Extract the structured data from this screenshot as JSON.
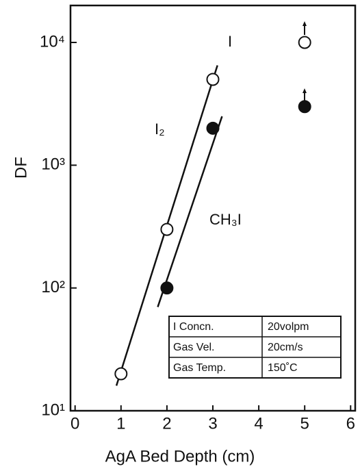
{
  "chart_data": {
    "type": "scatter",
    "xlabel": "AgA Bed Depth (cm)",
    "ylabel": "DF",
    "xlim": [
      -0.1,
      6.1
    ],
    "xticks": [
      0,
      1,
      2,
      3,
      4,
      5,
      6
    ],
    "ylim": [
      10,
      20000
    ],
    "ylog": true,
    "yticks": [
      {
        "value": 10,
        "label": "10¹"
      },
      {
        "value": 100,
        "label": "10²"
      },
      {
        "value": 1000,
        "label": "10³"
      },
      {
        "value": 10000,
        "label": "10⁴"
      }
    ],
    "series": [
      {
        "name": "I₂",
        "color": "#111111",
        "marker": "open",
        "x": [
          1,
          2,
          3,
          5
        ],
        "values": [
          20,
          300,
          5000,
          10000
        ]
      },
      {
        "name": "CH₃I",
        "color": "#111111",
        "marker": "filled",
        "x": [
          2,
          3,
          5
        ],
        "values": [
          100,
          2000,
          3000
        ]
      }
    ],
    "fit_lines": [
      {
        "x": [
          0.9,
          3.1
        ],
        "values": [
          16,
          6500
        ]
      },
      {
        "x": [
          1.8,
          3.2
        ],
        "values": [
          70,
          2500
        ]
      }
    ],
    "annotations": [
      "I",
      "I₂",
      "CH₃I"
    ],
    "table": [
      [
        "I Concn.",
        "20volpm"
      ],
      [
        "Gas Vel.",
        "20cm/s"
      ],
      [
        "Gas Temp.",
        "150˚C"
      ]
    ]
  }
}
